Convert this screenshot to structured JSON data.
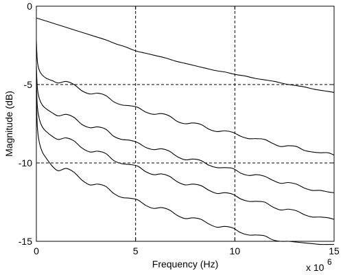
{
  "chart_data": {
    "type": "line",
    "title": "",
    "xlabel": "Frequency (Hz)",
    "ylabel": "Magnitude (dB)",
    "x_multiplier": "x 10",
    "x_exponent": "6",
    "xlim": [
      0,
      15
    ],
    "ylim": [
      -15,
      0
    ],
    "x_ticks": [
      0,
      5,
      10,
      15
    ],
    "y_ticks": [
      0,
      -5,
      -10,
      -15
    ],
    "x_tick_labels": [
      "0",
      "5",
      "10",
      "15"
    ],
    "y_tick_labels": [
      "0",
      "-5",
      "-10",
      "-15"
    ],
    "grid": true,
    "grid_style": "dashed",
    "line_color": "#000000",
    "series": [
      {
        "x": [
          0,
          0.5,
          1,
          1.5,
          2,
          2.5,
          3,
          3.5,
          4,
          4.5,
          5,
          5.5,
          6,
          6.5,
          7,
          7.5,
          8,
          8.5,
          9,
          9.5,
          10,
          10.5,
          11,
          11.5,
          12,
          12.5,
          13,
          13.5,
          14,
          14.5,
          15
        ],
        "values": [
          -0.75,
          -0.95,
          -1.15,
          -1.35,
          -1.55,
          -1.75,
          -1.95,
          -2.15,
          -2.4,
          -2.6,
          -2.85,
          -3.0,
          -3.15,
          -3.3,
          -3.5,
          -3.65,
          -3.8,
          -3.95,
          -4.1,
          -4.2,
          -4.35,
          -4.45,
          -4.6,
          -4.7,
          -4.8,
          -4.95,
          -5.05,
          -5.15,
          -5.3,
          -5.4,
          -5.5
        ]
      },
      {
        "x": [
          0,
          0.05,
          0.15,
          0.3,
          0.5,
          0.8,
          1.1,
          1.5,
          1.9,
          2.3,
          2.7,
          3.1,
          3.5,
          3.9,
          4.3,
          4.7,
          5.1,
          5.5,
          5.9,
          6.3,
          6.7,
          7.1,
          7.5,
          7.9,
          8.3,
          8.7,
          9.1,
          9.5,
          9.9,
          10.3,
          10.7,
          11.1,
          11.5,
          11.9,
          12.3,
          12.7,
          13.1,
          13.5,
          13.9,
          14.3,
          14.7,
          15
        ],
        "values": [
          -2.2,
          -3.5,
          -4.1,
          -4.4,
          -4.6,
          -4.75,
          -4.9,
          -4.8,
          -5.0,
          -5.4,
          -5.6,
          -5.55,
          -5.7,
          -6.1,
          -6.3,
          -6.35,
          -6.45,
          -6.75,
          -6.9,
          -6.85,
          -7.0,
          -7.35,
          -7.5,
          -7.45,
          -7.55,
          -7.85,
          -8.0,
          -7.95,
          -8.05,
          -8.3,
          -8.45,
          -8.45,
          -8.5,
          -8.75,
          -8.95,
          -8.9,
          -8.95,
          -9.2,
          -9.3,
          -9.35,
          -9.35,
          -9.5
        ]
      },
      {
        "x": [
          0,
          0.05,
          0.15,
          0.3,
          0.5,
          0.8,
          1.1,
          1.5,
          1.9,
          2.3,
          2.7,
          3.1,
          3.5,
          3.9,
          4.3,
          4.7,
          5.1,
          5.5,
          5.9,
          6.3,
          6.7,
          7.1,
          7.5,
          7.9,
          8.3,
          8.7,
          9.1,
          9.5,
          9.9,
          10.3,
          10.7,
          11.1,
          11.5,
          11.9,
          12.3,
          12.7,
          13.1,
          13.5,
          13.9,
          14.3,
          14.7,
          15
        ],
        "values": [
          -3.8,
          -5.2,
          -5.9,
          -6.3,
          -6.55,
          -6.8,
          -7.0,
          -6.9,
          -7.1,
          -7.55,
          -7.75,
          -7.7,
          -7.85,
          -8.3,
          -8.5,
          -8.55,
          -8.7,
          -9.0,
          -9.15,
          -9.1,
          -9.25,
          -9.6,
          -9.8,
          -9.75,
          -9.85,
          -10.15,
          -10.3,
          -10.3,
          -10.35,
          -10.65,
          -10.8,
          -10.75,
          -10.85,
          -11.1,
          -11.3,
          -11.25,
          -11.35,
          -11.6,
          -11.75,
          -11.75,
          -11.85,
          -11.9
        ]
      },
      {
        "x": [
          0,
          0.05,
          0.15,
          0.3,
          0.5,
          0.8,
          1.1,
          1.5,
          1.9,
          2.3,
          2.7,
          3.1,
          3.5,
          3.9,
          4.3,
          4.7,
          5.1,
          5.5,
          5.9,
          6.3,
          6.7,
          7.1,
          7.5,
          7.9,
          8.3,
          8.7,
          9.1,
          9.5,
          9.9,
          10.3,
          10.7,
          11.1,
          11.5,
          11.9,
          12.3,
          12.7,
          13.1,
          13.5,
          13.9,
          14.3,
          14.7,
          15
        ],
        "values": [
          -4.8,
          -6.4,
          -7.2,
          -7.7,
          -8.0,
          -8.3,
          -8.5,
          -8.4,
          -8.6,
          -9.05,
          -9.3,
          -9.25,
          -9.4,
          -9.85,
          -10.05,
          -10.1,
          -10.2,
          -10.55,
          -10.75,
          -10.7,
          -10.85,
          -11.2,
          -11.4,
          -11.35,
          -11.45,
          -11.75,
          -11.95,
          -11.9,
          -12.0,
          -12.3,
          -12.45,
          -12.45,
          -12.5,
          -12.8,
          -13.0,
          -12.95,
          -13.05,
          -13.3,
          -13.45,
          -13.45,
          -13.5,
          -13.6
        ]
      },
      {
        "x": [
          0,
          0.05,
          0.15,
          0.3,
          0.5,
          0.8,
          1.1,
          1.5,
          1.9,
          2.3,
          2.7,
          3.1,
          3.5,
          3.9,
          4.3,
          4.7,
          5.1,
          5.5,
          5.9,
          6.3,
          6.7,
          7.1,
          7.5,
          7.9,
          8.3,
          8.7,
          9.1,
          9.5,
          9.9,
          10.3,
          10.7,
          11.1,
          11.5,
          11.9,
          12.3,
          12.7,
          13.1,
          13.5,
          13.9,
          14.3,
          14.7,
          15
        ],
        "values": [
          -5.8,
          -7.7,
          -8.7,
          -9.3,
          -9.7,
          -10.2,
          -10.5,
          -10.35,
          -10.6,
          -11.1,
          -11.4,
          -11.35,
          -11.5,
          -11.95,
          -12.2,
          -12.25,
          -12.35,
          -12.7,
          -12.9,
          -12.85,
          -13.0,
          -13.35,
          -13.55,
          -13.5,
          -13.6,
          -13.9,
          -14.1,
          -14.05,
          -14.15,
          -14.45,
          -14.6,
          -14.6,
          -14.65,
          -14.9,
          -15.0,
          -15.0,
          -15.05,
          -15.1,
          -15.15,
          -15.2,
          -15.2,
          -15.2
        ]
      }
    ]
  }
}
